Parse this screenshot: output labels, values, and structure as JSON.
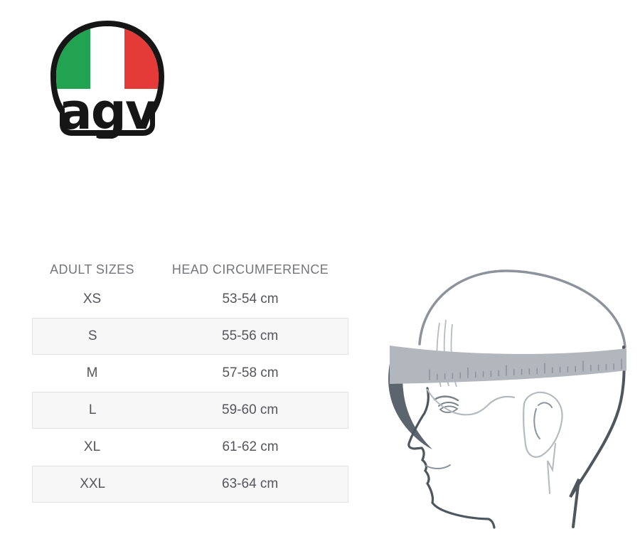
{
  "logo": {
    "brand_text": "agv",
    "outline_color": "#161616",
    "flag": {
      "green": "#21a351",
      "white": "#ffffff",
      "red": "#e53b38"
    }
  },
  "size_chart": {
    "headers": {
      "sizes": "ADULT SIZES",
      "circumference": "HEAD CIRCUMFERENCE"
    },
    "rows": [
      {
        "size": "XS",
        "circumference": "53-54 cm"
      },
      {
        "size": "S",
        "circumference": "55-56 cm"
      },
      {
        "size": "M",
        "circumference": "57-58 cm"
      },
      {
        "size": "L",
        "circumference": "59-60 cm"
      },
      {
        "size": "XL",
        "circumference": "61-62 cm"
      },
      {
        "size": "XXL",
        "circumference": "63-64 cm"
      }
    ],
    "stripe_background": "#f7f7f8",
    "stripe_border": "#e2e2e5",
    "header_text_color": "#74767b",
    "cell_text_color": "#54565b"
  },
  "illustration": {
    "description": "side profile of a head with a measuring tape wrapped around the forehead",
    "colors": {
      "skull": "#8c939a",
      "tape": "#b2b7be",
      "tick": "#8d949c",
      "tape_end": "#5c656d",
      "outline": "#4e565e",
      "medium": "#7a828a",
      "mouth": "#8d949b",
      "light": "#b5bac0"
    }
  }
}
